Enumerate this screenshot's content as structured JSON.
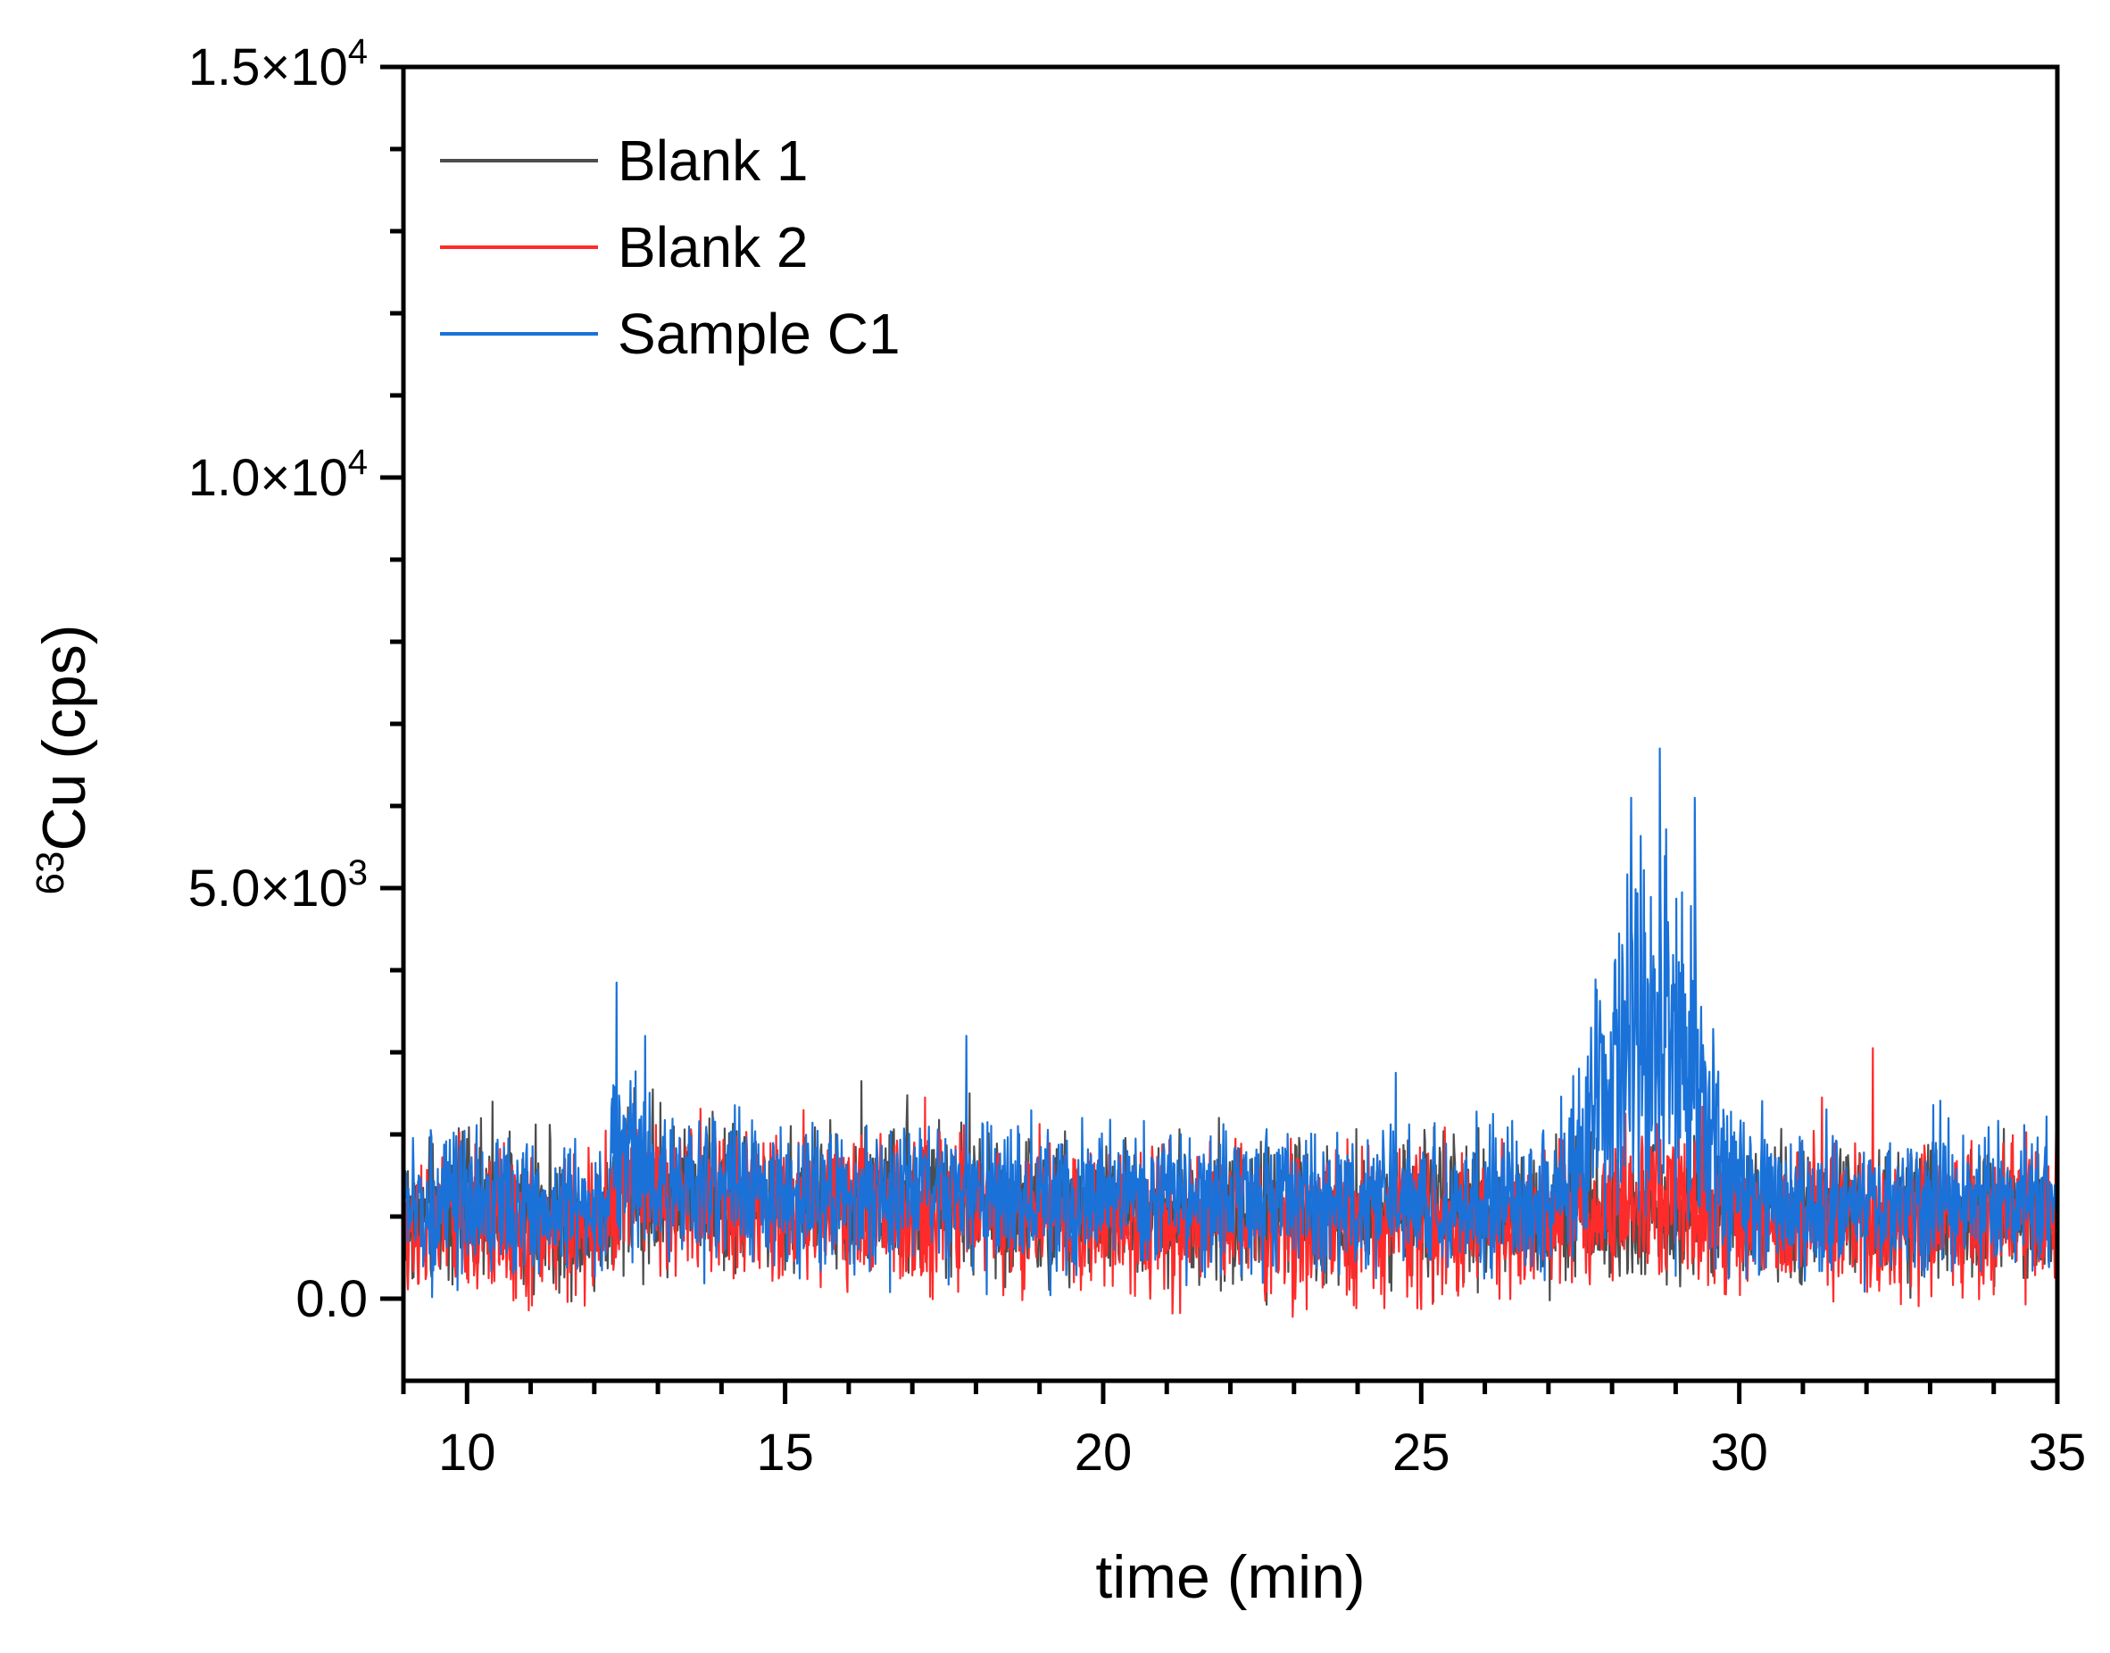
{
  "chart_data": {
    "type": "line",
    "title": "",
    "xlabel": "time (min)",
    "ylabel": {
      "isotope_mass": "63",
      "element": "Cu",
      "unit": "(cps)"
    },
    "xlim": [
      9,
      35
    ],
    "ylim": [
      -1000,
      15000
    ],
    "x_ticks": [
      {
        "value": 10,
        "label": "10"
      },
      {
        "value": 15,
        "label": "15"
      },
      {
        "value": 20,
        "label": "20"
      },
      {
        "value": 25,
        "label": "25"
      },
      {
        "value": 30,
        "label": "30"
      },
      {
        "value": 35,
        "label": "35"
      }
    ],
    "y_ticks": [
      {
        "value": 0,
        "label": "0.0"
      },
      {
        "value": 5000,
        "mantissa": "5.0×10",
        "exponent": "3"
      },
      {
        "value": 10000,
        "mantissa": "1.0×10",
        "exponent": "4"
      },
      {
        "value": 15000,
        "mantissa": "1.5×10",
        "exponent": "4"
      }
    ],
    "legend_position": "top-left",
    "series": [
      {
        "name": "Blank 1",
        "color": "#4d4d4d",
        "x": [
          9.0,
          10.0,
          11.0,
          12.0,
          12.3,
          12.5,
          13.0,
          14.0,
          15.0,
          16.0,
          17.0,
          18.0,
          19.0,
          20.0,
          21.0,
          22.0,
          23.0,
          24.0,
          25.0,
          26.0,
          27.0,
          28.0,
          28.5,
          29.0,
          30.0,
          31.0,
          32.0,
          33.0,
          34.0,
          35.0
        ],
        "y": [
          1000,
          1050,
          1000,
          950,
          1200,
          1450,
          1300,
          1250,
          1200,
          1200,
          1150,
          1150,
          1100,
          1100,
          1100,
          1050,
          1050,
          1050,
          1050,
          1050,
          1050,
          1050,
          1100,
          1050,
          1050,
          1050,
          1000,
          1050,
          1000,
          1000
        ],
        "noise": 420,
        "spikes": [
          [
            10.4,
            2400
          ],
          [
            16.2,
            2650
          ],
          [
            17.9,
            2500
          ],
          [
            29.2,
            2200
          ]
        ]
      },
      {
        "name": "Blank 2",
        "color": "#ff2b2b",
        "x": [
          9.0,
          10.0,
          11.0,
          12.0,
          12.3,
          12.5,
          13.0,
          14.0,
          15.0,
          16.0,
          17.0,
          18.0,
          19.0,
          20.0,
          21.0,
          22.0,
          23.0,
          24.0,
          25.0,
          26.0,
          27.0,
          27.5,
          28.0,
          28.5,
          29.0,
          29.5,
          30.0,
          31.0,
          32.0,
          33.0,
          34.0,
          35.0
        ],
        "y": [
          900,
          900,
          850,
          850,
          1100,
          1350,
          1250,
          1150,
          1100,
          1100,
          1050,
          1050,
          1000,
          1000,
          1000,
          950,
          950,
          950,
          950,
          950,
          950,
          1000,
          1150,
          1150,
          1150,
          1000,
          950,
          950,
          950,
          950,
          950,
          950
        ],
        "noise": 430,
        "spikes": [
          [
            9.8,
            1750
          ],
          [
            17.2,
            2450
          ],
          [
            31.3,
            2450
          ],
          [
            32.1,
            3050
          ]
        ]
      },
      {
        "name": "Sample C1",
        "color": "#1a72d9",
        "x": [
          9.0,
          10.0,
          11.0,
          12.0,
          12.3,
          12.5,
          13.0,
          14.0,
          15.0,
          16.0,
          17.0,
          18.0,
          19.0,
          20.0,
          21.0,
          22.0,
          23.0,
          24.0,
          25.0,
          26.0,
          27.0,
          27.5,
          28.0,
          28.5,
          28.8,
          29.0,
          29.5,
          30.0,
          31.0,
          32.0,
          33.0,
          34.0,
          35.0
        ],
        "y": [
          1100,
          1100,
          1100,
          1100,
          1500,
          1800,
          1400,
          1300,
          1250,
          1250,
          1250,
          1250,
          1200,
          1200,
          1200,
          1200,
          1200,
          1150,
          1150,
          1150,
          1200,
          1700,
          2600,
          3400,
          3350,
          3000,
          2200,
          1300,
          1150,
          1150,
          1150,
          1150,
          1150
        ],
        "noise": 420,
        "spikes": [
          [
            12.35,
            3850
          ],
          [
            12.8,
            3200
          ],
          [
            17.85,
            3200
          ],
          [
            28.3,
            6100
          ],
          [
            28.75,
            6700
          ],
          [
            29.3,
            6100
          ],
          [
            24.6,
            2750
          ]
        ]
      }
    ]
  }
}
